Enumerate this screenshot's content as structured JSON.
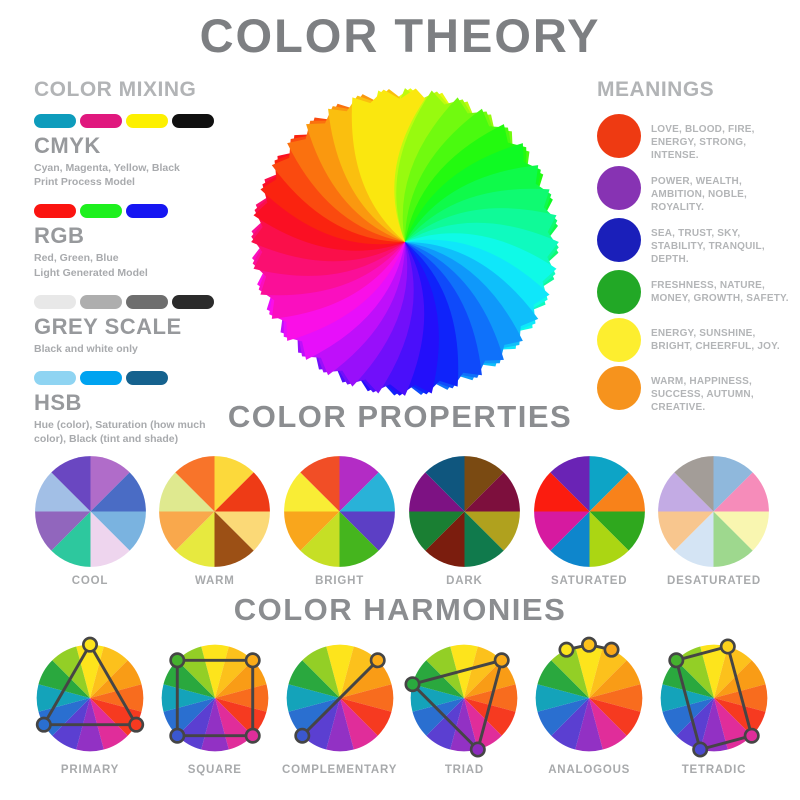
{
  "title": "COLOR THEORY",
  "color_mixing": {
    "heading": "COLOR MIXING",
    "models": [
      {
        "name": "CMYK",
        "swatches": [
          "#0e9cbc",
          "#e0187e",
          "#fdf000",
          "#101010"
        ],
        "desc": [
          "Cyan, Magenta, Yellow, Black",
          "Print Process Model"
        ]
      },
      {
        "name": "RGB",
        "swatches": [
          "#fb1410",
          "#1ef01e",
          "#1616f2"
        ],
        "desc": [
          "Red, Green, Blue",
          "Light Generated Model"
        ]
      },
      {
        "name": "GREY SCALE",
        "swatches": [
          "#e8e8e8",
          "#aeaeae",
          "#6e6e6e",
          "#2b2b2b"
        ],
        "desc": [
          "Black and white only"
        ]
      },
      {
        "name": "HSB",
        "swatches": [
          "#8fd4f2",
          "#00a3f0",
          "#15628e"
        ],
        "desc": [
          "Hue (color), Saturation (how much",
          "color), Black (tint and shade)"
        ]
      }
    ]
  },
  "pinwheel": {
    "segments": 36,
    "hue_start": 60,
    "saturation": 96,
    "lightness": 52,
    "style": "rainbow swirl pinwheel with serrated edge, yellow at top, clockwise to green, blue, violet, magenta, red, orange"
  },
  "meanings": {
    "heading": "MEANINGS",
    "items": [
      {
        "color": "#ee3a12",
        "text": "LOVE, BLOOD, FIRE, ENERGY, STRONG, INTENSE."
      },
      {
        "color": "#8733b3",
        "text": "POWER, WEALTH, AMBITION, NOBLE, ROYALITY."
      },
      {
        "color": "#1a1fba",
        "text": "SEA, TRUST, SKY, STABILITY, TRANQUIL, DEPTH."
      },
      {
        "color": "#22a826",
        "text": "FRESHNESS, NATURE, MONEY, GROWTH, SAFETY."
      },
      {
        "color": "#fdee2f",
        "text": "ENERGY, SUNSHINE, BRIGHT, CHEERFUL, JOY."
      },
      {
        "color": "#f6931d",
        "text": "WARM, HAPPINESS, SUCCESS, AUTUMN, CREATIVE."
      }
    ]
  },
  "properties": {
    "heading": "COLOR PROPERTIES",
    "wheels": [
      {
        "label": "COOL",
        "colors": [
          "#b06cc9",
          "#4a6cc5",
          "#7ab3e0",
          "#eed5ee",
          "#2dc89e",
          "#9166bd",
          "#a2bfe6",
          "#6a47c1"
        ]
      },
      {
        "label": "WARM",
        "colors": [
          "#fcd93b",
          "#ee3b16",
          "#fbd977",
          "#9c5015",
          "#e7e93f",
          "#f9a84c",
          "#dfe98f",
          "#f8742a"
        ]
      },
      {
        "label": "BRIGHT",
        "colors": [
          "#b32cc5",
          "#29b2d8",
          "#5c3fc5",
          "#45b51e",
          "#c6df25",
          "#f9a61c",
          "#f9ed35",
          "#f14e26"
        ]
      },
      {
        "label": "DARK",
        "colors": [
          "#7a4a12",
          "#7d0f3d",
          "#b0a11e",
          "#107a4c",
          "#7b1d0e",
          "#1a7f33",
          "#7d1283",
          "#0f567e"
        ]
      },
      {
        "label": "SATURATED",
        "colors": [
          "#0da4c6",
          "#f8821a",
          "#2fa81e",
          "#abd613",
          "#0e86cc",
          "#d61aa0",
          "#fb1c0f",
          "#6a23b5"
        ]
      },
      {
        "label": "DESATURATED",
        "colors": [
          "#8fb8dc",
          "#f68cba",
          "#f9f6b0",
          "#9ed88e",
          "#d4e4f4",
          "#f8c68e",
          "#c3abe4",
          "#a39d98"
        ]
      }
    ]
  },
  "harmonies": {
    "heading": "COLOR HARMONIES",
    "wheel_colors": [
      "#fde41c",
      "#fcc11c",
      "#f99c16",
      "#f86c1e",
      "#f63a20",
      "#e02d9a",
      "#9231c4",
      "#5b3fd1",
      "#2a6fd0",
      "#14a3ba",
      "#2aa83e",
      "#93cf26"
    ],
    "line_color": "#454545",
    "items": [
      {
        "label": "PRIMARY",
        "angles": [
          0,
          120,
          240
        ],
        "closed": true,
        "marker_colors": [
          "#fde41c",
          "#f63a20",
          "#2a6fd0"
        ]
      },
      {
        "label": "SQUARE",
        "angles": [
          45,
          135,
          225,
          315
        ],
        "closed": true,
        "marker_colors": [
          "#fbab18",
          "#e02d9a",
          "#3b57cf",
          "#45b12e"
        ]
      },
      {
        "label": "COMPLEMENTARY",
        "angles": [
          45,
          225
        ],
        "closed": false,
        "marker_colors": [
          "#fbab18",
          "#3b57cf"
        ]
      },
      {
        "label": "TRIAD",
        "angles": [
          45,
          165,
          285
        ],
        "closed": true,
        "marker_colors": [
          "#fbab18",
          "#8c2bbd",
          "#2aa83e"
        ]
      },
      {
        "label": "ANALOGOUS",
        "angles": [
          -25,
          0,
          25
        ],
        "closed": false,
        "marker_colors": [
          "#fde41c",
          "#fcc11c",
          "#f9a818"
        ]
      },
      {
        "label": "TETRADIC",
        "angles": [
          315,
          15,
          135,
          195
        ],
        "closed": true,
        "marker_colors": [
          "#45b12e",
          "#fdd21c",
          "#e02d9a",
          "#4b49cf"
        ]
      }
    ]
  }
}
